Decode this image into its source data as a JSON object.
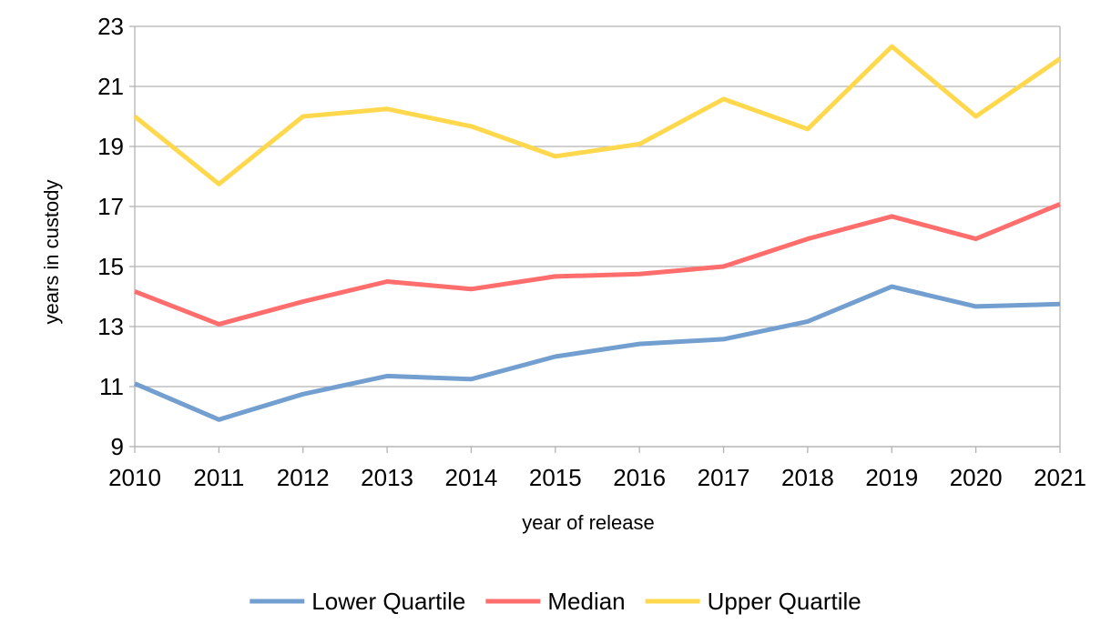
{
  "chart_data": {
    "type": "line",
    "title": "",
    "xlabel": "year of release",
    "ylabel": "years in custody",
    "x": [
      "2010",
      "2011",
      "2012",
      "2013",
      "2014",
      "2015",
      "2016",
      "2017",
      "2018",
      "2019",
      "2020",
      "2021"
    ],
    "ylim": [
      9,
      23
    ],
    "yticks": [
      "9",
      "11",
      "13",
      "15",
      "17",
      "19",
      "21",
      "23"
    ],
    "grid": true,
    "legend_position": "bottom",
    "series": [
      {
        "name": "Lower Quartile",
        "color": "#729fcf",
        "values": [
          11.1,
          9.9,
          10.75,
          11.35,
          11.25,
          12.0,
          12.42,
          12.58,
          13.17,
          14.33,
          13.67,
          13.75
        ]
      },
      {
        "name": "Median",
        "color": "#ff6d6d",
        "values": [
          14.17,
          13.08,
          13.83,
          14.5,
          14.25,
          14.67,
          14.75,
          15.0,
          15.92,
          16.67,
          15.92,
          17.08
        ]
      },
      {
        "name": "Upper Quartile",
        "color": "#ffd84d",
        "values": [
          20.0,
          17.75,
          20.0,
          20.25,
          19.67,
          18.67,
          19.08,
          20.58,
          19.58,
          22.33,
          20.0,
          21.92
        ]
      }
    ]
  }
}
